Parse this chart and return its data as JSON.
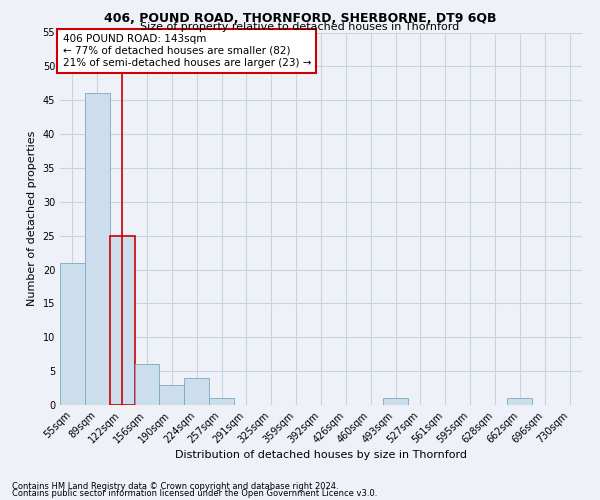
{
  "title": "406, POUND ROAD, THORNFORD, SHERBORNE, DT9 6QB",
  "subtitle": "Size of property relative to detached houses in Thornford",
  "xlabel": "Distribution of detached houses by size in Thornford",
  "ylabel": "Number of detached properties",
  "footnote1": "Contains HM Land Registry data © Crown copyright and database right 2024.",
  "footnote2": "Contains public sector information licensed under the Open Government Licence v3.0.",
  "annotation_line1": "406 POUND ROAD: 143sqm",
  "annotation_line2": "← 77% of detached houses are smaller (82)",
  "annotation_line3": "21% of semi-detached houses are larger (23) →",
  "subject_bar_index": 2,
  "bar_width": 1.0,
  "categories": [
    "55sqm",
    "89sqm",
    "122sqm",
    "156sqm",
    "190sqm",
    "224sqm",
    "257sqm",
    "291sqm",
    "325sqm",
    "359sqm",
    "392sqm",
    "426sqm",
    "460sqm",
    "493sqm",
    "527sqm",
    "561sqm",
    "595sqm",
    "628sqm",
    "662sqm",
    "696sqm",
    "730sqm"
  ],
  "values": [
    21,
    46,
    25,
    6,
    3,
    4,
    1,
    0,
    0,
    0,
    0,
    0,
    0,
    1,
    0,
    0,
    0,
    0,
    1,
    0,
    0
  ],
  "bar_color": "#ccdded",
  "bar_edge_color": "#7aaabb",
  "subject_bar_edge_color": "#cc0000",
  "annotation_box_edge_color": "#cc0000",
  "annotation_box_face_color": "#ffffff",
  "grid_color": "#c8d4e0",
  "background_color": "#eef2f8",
  "ylim": [
    0,
    55
  ],
  "yticks": [
    0,
    5,
    10,
    15,
    20,
    25,
    30,
    35,
    40,
    45,
    50,
    55
  ],
  "title_fontsize": 9,
  "subtitle_fontsize": 8,
  "axis_label_fontsize": 8,
  "ylabel_fontsize": 8,
  "tick_fontsize": 7,
  "annotation_fontsize": 7.5,
  "footnote_fontsize": 6
}
